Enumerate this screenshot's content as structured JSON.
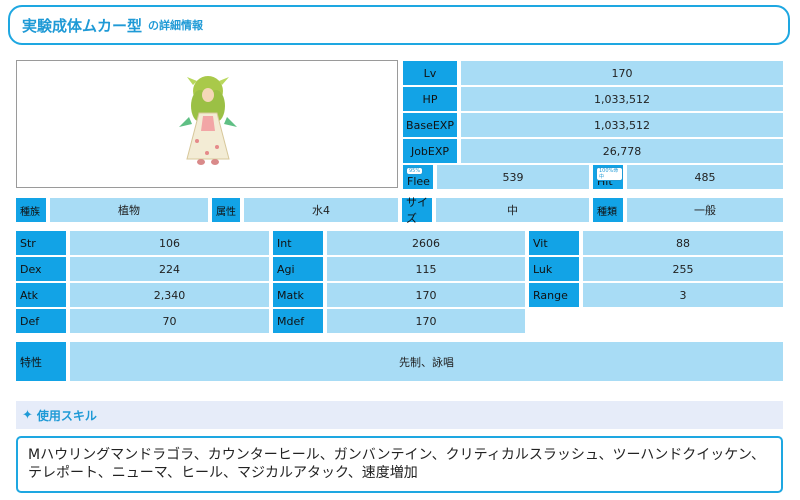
{
  "title": {
    "main": "実験成体ムカー型",
    "sub": "の詳細情報"
  },
  "image": {
    "alt": "monster-sprite"
  },
  "top_stats": [
    {
      "label": "Lv",
      "value": "170"
    },
    {
      "label": "HP",
      "value": "1,033,512"
    },
    {
      "label": "BaseEXP",
      "value": "1,033,512"
    },
    {
      "label": "JobEXP",
      "value": "26,778"
    }
  ],
  "flee": {
    "badge": "95%",
    "label": "Flee",
    "value": "539"
  },
  "hit": {
    "badge": "100%命中",
    "label": "Hit",
    "value": "485"
  },
  "attributes": {
    "race_label": "種族",
    "race_value": "植物",
    "element_label": "属性",
    "element_value": "水4",
    "size_label": "サイズ",
    "size_value": "中",
    "type_label": "種類",
    "type_value": "一般"
  },
  "params": {
    "str_label": "Str",
    "str_value": "106",
    "int_label": "Int",
    "int_value": "2606",
    "vit_label": "Vit",
    "vit_value": "88",
    "dex_label": "Dex",
    "dex_value": "224",
    "agi_label": "Agi",
    "agi_value": "115",
    "luk_label": "Luk",
    "luk_value": "255",
    "atk_label": "Atk",
    "atk_value": "2,340",
    "matk_label": "Matk",
    "matk_value": "170",
    "range_label": "Range",
    "range_value": "3",
    "def_label": "Def",
    "def_value": "70",
    "mdef_label": "Mdef",
    "mdef_value": "170"
  },
  "traits": {
    "label": "特性",
    "value": "先制、詠唱"
  },
  "skills": {
    "header": "使用スキル",
    "text": "Mハウリングマンドラゴラ、カウンターヒール、ガンバンテイン、クリティカルスラッシュ、ツーハンドクイッケン、テレポート、ニューマ、ヒール、マジカルアタック、速度増加"
  },
  "colors": {
    "accent": "#1ea7e1",
    "label_bg": "#12a3e6",
    "value_bg": "#a8dcf5",
    "section_bg": "#e6ecf9"
  }
}
